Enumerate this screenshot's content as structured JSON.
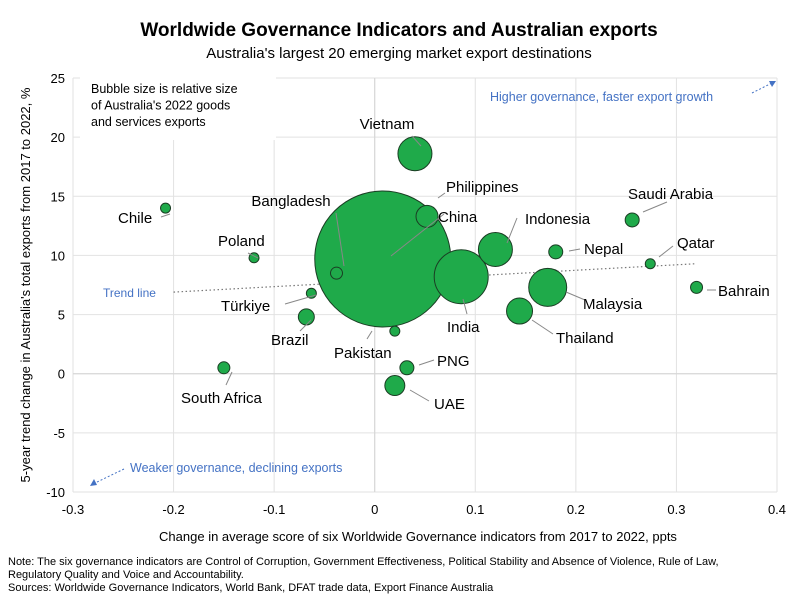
{
  "chart_data": {
    "type": "scatter",
    "title": "Worldwide Governance Indicators and Australian exports",
    "subtitle": "Australia's largest 20 emerging market export destinations",
    "xlabel": "Change in average score of six Worldwide Governance indicators from 2017 to 2022, ppts",
    "ylabel": "5-year trend change in Australia's total exports from 2017 to 2022, %",
    "xlim": [
      -0.3,
      0.4
    ],
    "ylim": [
      -10,
      25
    ],
    "xticks": [
      "-0.3",
      "-0.2",
      "-0.1",
      "0",
      "0.1",
      "0.2",
      "0.3",
      "0.4"
    ],
    "yticks": [
      "-10",
      "-5",
      "0",
      "5",
      "10",
      "15",
      "20",
      "25"
    ],
    "grid": true,
    "bubble_color": "#1faa4a",
    "points": [
      {
        "label": "China",
        "x": 0.008,
        "y": 9.7,
        "r": 68
      },
      {
        "label": "Vietnam",
        "x": 0.04,
        "y": 18.6,
        "r": 17
      },
      {
        "label": "Philippines",
        "x": 0.052,
        "y": 13.3,
        "r": 11
      },
      {
        "label": "Bangladesh",
        "x": -0.038,
        "y": 8.5,
        "r": 6
      },
      {
        "label": "Chile",
        "x": -0.208,
        "y": 14.0,
        "r": 5
      },
      {
        "label": "Poland",
        "x": -0.12,
        "y": 9.8,
        "r": 5
      },
      {
        "label": "Türkiye",
        "x": -0.063,
        "y": 6.8,
        "r": 5
      },
      {
        "label": "Brazil",
        "x": -0.068,
        "y": 4.8,
        "r": 8
      },
      {
        "label": "Pakistan",
        "x": 0.02,
        "y": 3.6,
        "r": 5
      },
      {
        "label": "PNG",
        "x": 0.032,
        "y": 0.5,
        "r": 7
      },
      {
        "label": "UAE",
        "x": 0.02,
        "y": -1.0,
        "r": 10
      },
      {
        "label": "South Africa",
        "x": -0.15,
        "y": 0.5,
        "r": 6
      },
      {
        "label": "India",
        "x": 0.086,
        "y": 8.2,
        "r": 27
      },
      {
        "label": "Indonesia",
        "x": 0.12,
        "y": 10.5,
        "r": 17
      },
      {
        "label": "Thailand",
        "x": 0.144,
        "y": 5.3,
        "r": 13
      },
      {
        "label": "Malaysia",
        "x": 0.172,
        "y": 7.3,
        "r": 19
      },
      {
        "label": "Nepal",
        "x": 0.18,
        "y": 10.3,
        "r": 7
      },
      {
        "label": "Saudi Arabia",
        "x": 0.256,
        "y": 13.0,
        "r": 7
      },
      {
        "label": "Qatar",
        "x": 0.274,
        "y": 9.3,
        "r": 5
      },
      {
        "label": "Bahrain",
        "x": 0.32,
        "y": 7.3,
        "r": 6
      }
    ],
    "trend_line": {
      "label": "Trend line",
      "x": [
        -0.2,
        0.32
      ],
      "y": [
        6.9,
        9.3
      ]
    },
    "annotations": {
      "box_text": [
        "Bubble size is relative size",
        "of Australia's 2022 goods",
        "and services exports"
      ],
      "top_right": "Higher governance, faster export growth",
      "bottom_left": "Weaker governance, declining exports"
    }
  },
  "notes": {
    "note_lines": [
      "Note: The six governance indicators are Control of Corruption, Government Effectiveness, Political Stability and Absence of Violence, Rule of Law,",
      "Regulatory Quality and Voice and Accountability."
    ],
    "sources": "Sources: Worldwide Governance Indicators, World Bank, DFAT trade data, Export Finance Australia"
  }
}
